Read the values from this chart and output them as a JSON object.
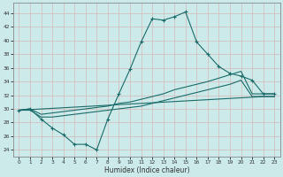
{
  "xlabel": "Humidex (Indice chaleur)",
  "xlim": [
    -0.5,
    23.5
  ],
  "ylim": [
    23,
    45.5
  ],
  "yticks": [
    24,
    26,
    28,
    30,
    32,
    34,
    36,
    38,
    40,
    42,
    44
  ],
  "xticks": [
    0,
    1,
    2,
    3,
    4,
    5,
    6,
    7,
    8,
    9,
    10,
    11,
    12,
    13,
    14,
    15,
    16,
    17,
    18,
    19,
    20,
    21,
    22,
    23
  ],
  "bg_color": "#cceaea",
  "grid_color": "#b0d8d8",
  "line_color": "#1a6b6b",
  "line1_x": [
    0,
    1,
    2,
    3,
    4,
    5,
    6,
    7,
    8,
    9,
    10,
    11,
    12,
    13,
    14,
    15,
    16,
    17,
    18,
    19,
    20,
    21,
    22,
    23
  ],
  "line1_y": [
    29.8,
    30.0,
    28.5,
    27.2,
    26.2,
    24.8,
    24.8,
    24.0,
    28.5,
    32.2,
    35.8,
    39.8,
    43.2,
    43.0,
    43.5,
    44.2,
    39.8,
    38.0,
    36.2,
    35.2,
    34.8,
    34.2,
    32.2,
    32.2
  ],
  "line2_x": [
    0,
    1,
    2,
    3,
    4,
    5,
    6,
    7,
    8,
    9,
    10,
    11,
    12,
    13,
    14,
    15,
    16,
    17,
    18,
    19,
    20,
    21,
    22,
    23
  ],
  "line2_y": [
    29.8,
    30.0,
    29.2,
    29.4,
    29.6,
    29.8,
    30.0,
    30.2,
    30.4,
    30.8,
    31.0,
    31.4,
    31.8,
    32.2,
    32.8,
    33.2,
    33.6,
    34.0,
    34.5,
    35.0,
    35.5,
    32.2,
    32.2,
    32.2
  ],
  "line3_x": [
    0,
    1,
    2,
    3,
    4,
    5,
    6,
    7,
    8,
    9,
    10,
    11,
    12,
    13,
    14,
    15,
    16,
    17,
    18,
    19,
    20,
    21,
    22,
    23
  ],
  "line3_y": [
    29.8,
    29.8,
    28.8,
    28.8,
    29.0,
    29.2,
    29.4,
    29.6,
    29.8,
    30.0,
    30.2,
    30.4,
    30.8,
    31.2,
    31.6,
    32.0,
    32.4,
    32.8,
    33.2,
    33.6,
    34.2,
    31.8,
    31.8,
    31.8
  ],
  "line4_x": [
    0,
    22,
    23
  ],
  "line4_y": [
    29.8,
    31.8,
    31.8
  ]
}
